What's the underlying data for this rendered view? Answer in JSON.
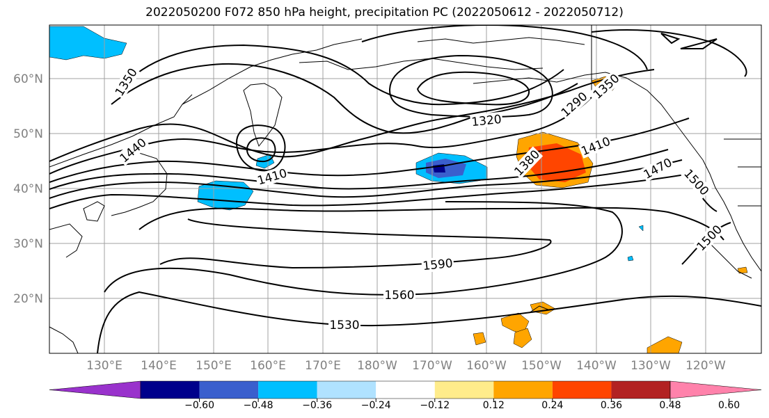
{
  "title": "2022050200 F072 850 hPa height, precipitation PC (2022050612 - 2022050712)",
  "map": {
    "lat_labels": [
      "60°N",
      "50°N",
      "40°N",
      "30°N",
      "20°N"
    ],
    "lon_labels": [
      "130°E",
      "140°E",
      "150°E",
      "160°E",
      "170°E",
      "180°W",
      "170°W",
      "160°W",
      "150°W",
      "140°W",
      "130°W",
      "120°W"
    ],
    "contour_labels": [
      "1350",
      "1440",
      "1410",
      "1320",
      "1290",
      "1350",
      "1380",
      "1410",
      "1470",
      "1500",
      "1500",
      "1590",
      "1560",
      "1530"
    ]
  },
  "colorbar": {
    "ticks": [
      "−0.60",
      "−0.48",
      "−0.36",
      "−0.24",
      "−0.12",
      "0.12",
      "0.24",
      "0.36",
      "0.48",
      "0.60"
    ],
    "colors": [
      "#9932cc",
      "#00008b",
      "#3a5fcd",
      "#00bfff",
      "#b0e2ff",
      "#ffffff",
      "#ffec8b",
      "#ffa500",
      "#ff4500",
      "#b22222",
      "#ff82ab"
    ]
  }
}
